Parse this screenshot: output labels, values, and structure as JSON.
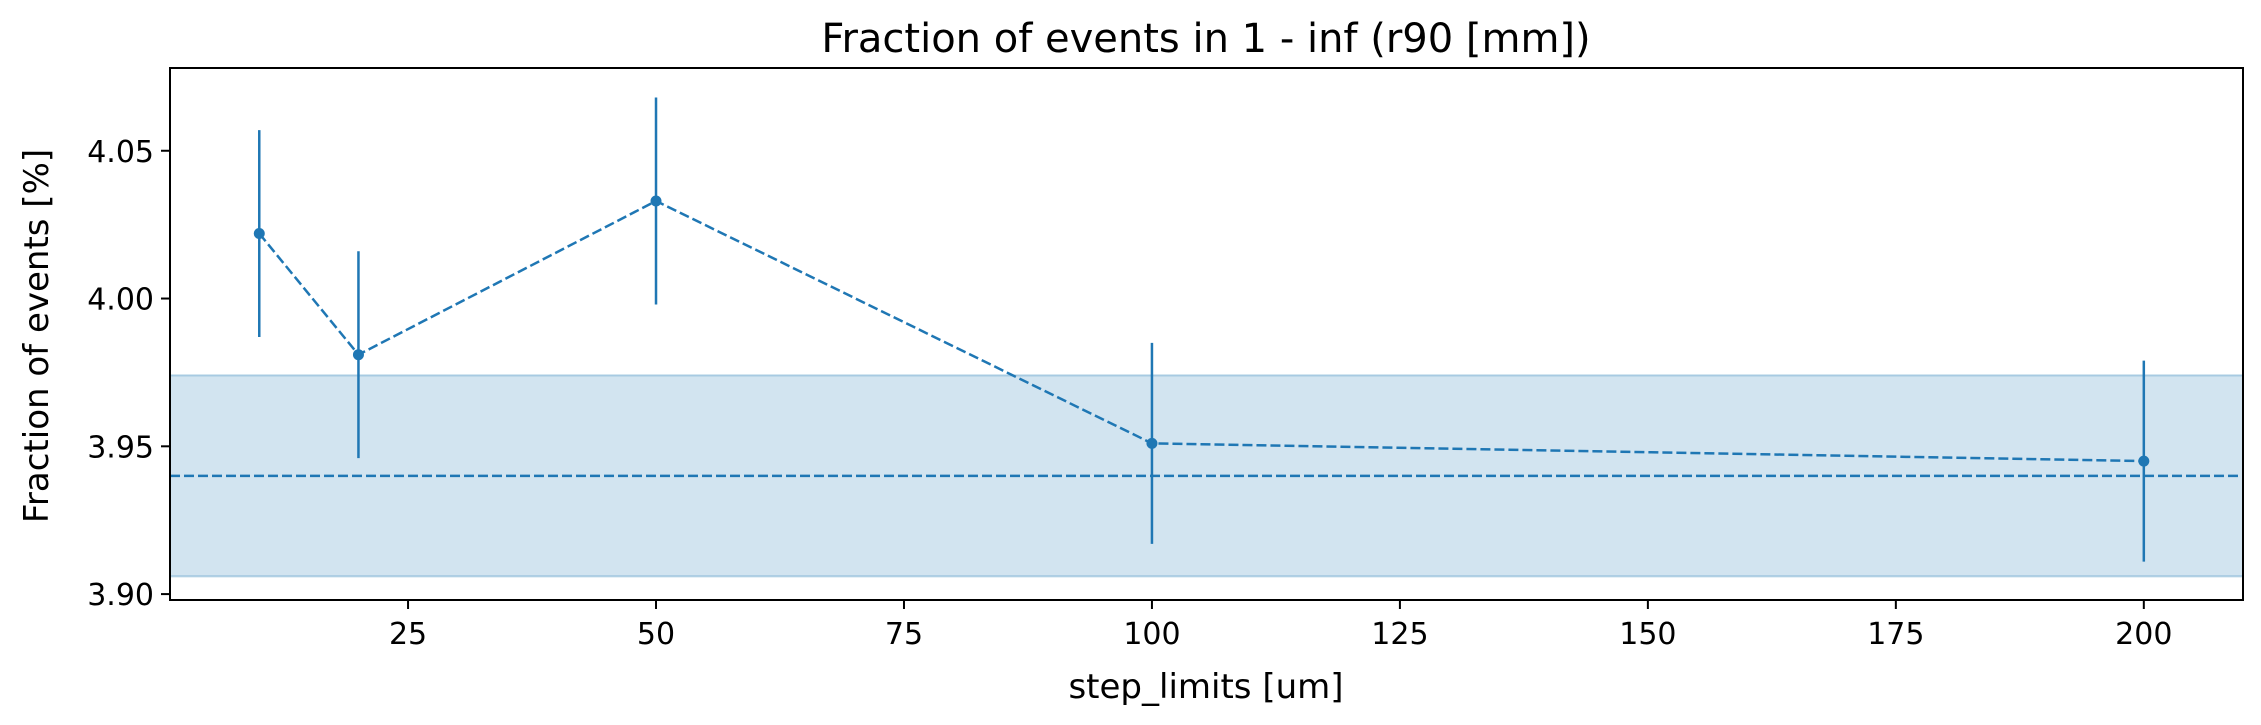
{
  "chart_data": {
    "type": "scatter",
    "title": "Fraction of events in 1 - inf (r90 [mm])",
    "xlabel": "step_limits [um]",
    "ylabel": "Fraction of events [%]",
    "xlim": [
      1,
      210
    ],
    "ylim": [
      3.898,
      4.078
    ],
    "xticks": [
      25,
      50,
      75,
      100,
      125,
      150,
      175,
      200
    ],
    "xtick_labels": [
      "25",
      "50",
      "75",
      "100",
      "125",
      "150",
      "175",
      "200"
    ],
    "yticks": [
      3.9,
      3.95,
      4.0,
      4.05
    ],
    "ytick_labels": [
      "3.90",
      "3.95",
      "4.00",
      "4.05"
    ],
    "grid": false,
    "color": "#1f77b4",
    "band": {
      "low": 3.906,
      "high": 3.974,
      "color": "#1f77b4",
      "alpha": 0.2
    },
    "reference_line": {
      "y": 3.94,
      "style": "dashed"
    },
    "series": [
      {
        "line_style": "dashed",
        "x": [
          10,
          20,
          50,
          100,
          200
        ],
        "y": [
          4.022,
          3.981,
          4.033,
          3.951,
          3.945
        ],
        "yerr": [
          0.035,
          0.035,
          0.035,
          0.034,
          0.034
        ]
      }
    ]
  }
}
